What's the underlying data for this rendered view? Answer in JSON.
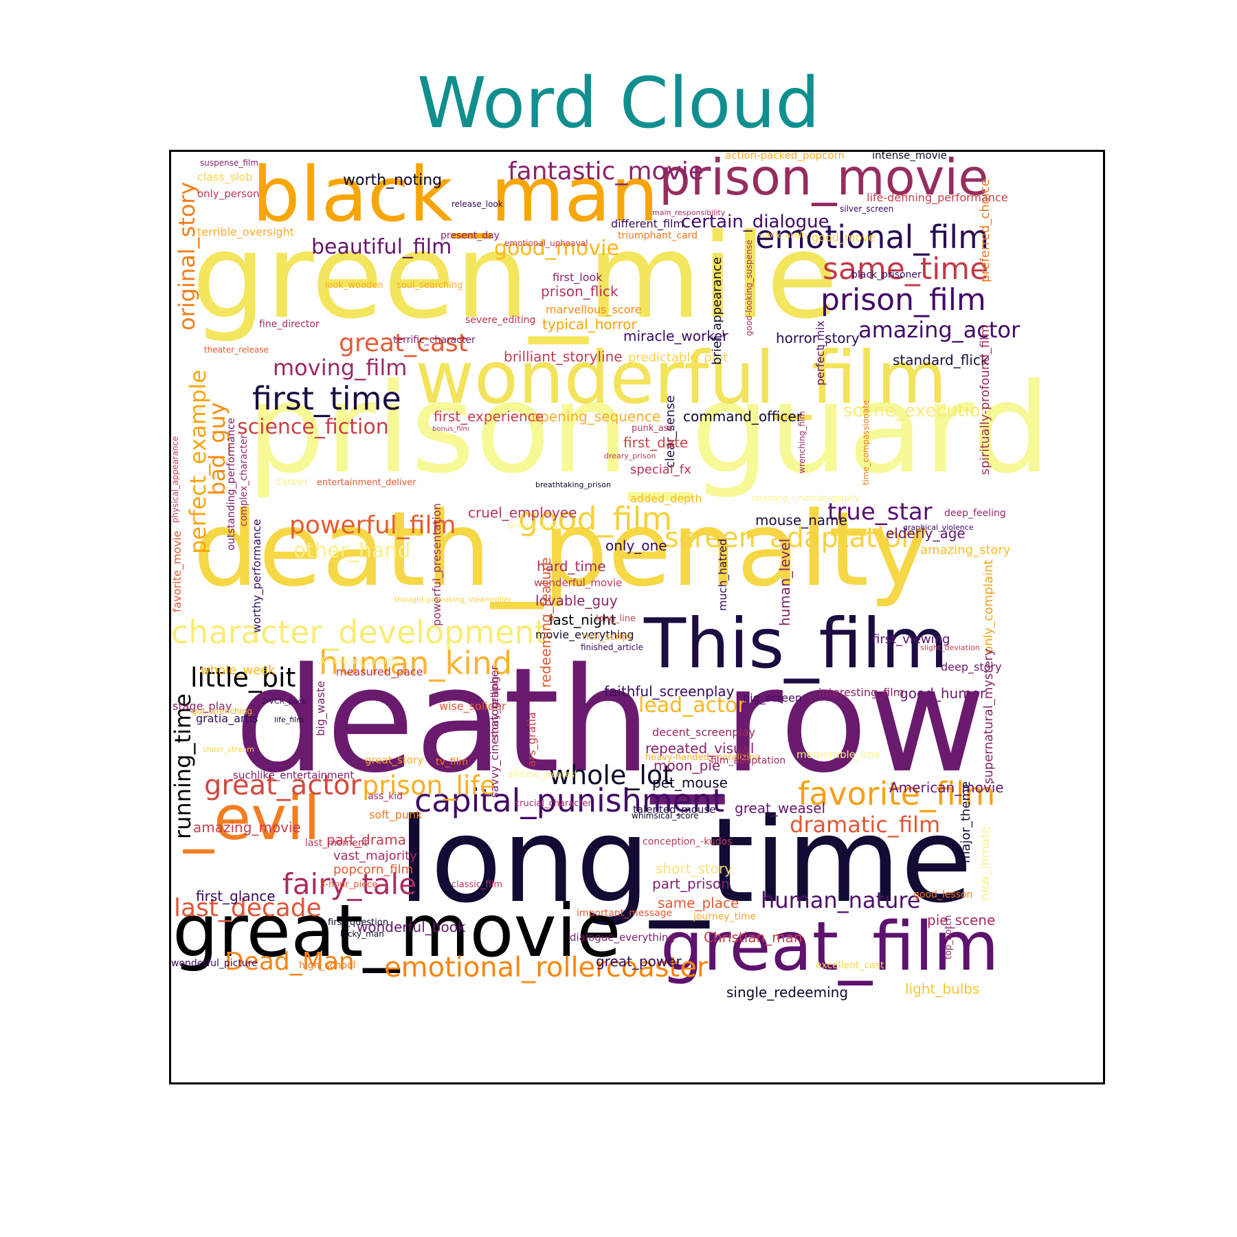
{
  "chart_data": {
    "type": "wordcloud",
    "title": "Word Cloud",
    "colormap": "inferno",
    "words": [
      {
        "text": "prison_guard",
        "color": "#f6f996"
      },
      {
        "text": "death_penalty",
        "color": "#f6d746"
      },
      {
        "text": "green_mile",
        "color": "#f3e55d"
      },
      {
        "text": "death_row",
        "color": "#6a1b6d"
      },
      {
        "text": "long_time",
        "color": "#140b34"
      },
      {
        "text": "wonderful_film",
        "color": "#f3e35a"
      },
      {
        "text": "black_man",
        "color": "#f8a507"
      },
      {
        "text": "prison_movie",
        "color": "#962c60"
      },
      {
        "text": "great_movie",
        "color": "#000004"
      },
      {
        "text": "great_film",
        "color": "#5d126e"
      },
      {
        "text": "This_film",
        "color": "#1b0c42"
      },
      {
        "text": "_evil",
        "color": "#f37d22"
      },
      {
        "text": "character_development",
        "color": "#f9ec74"
      },
      {
        "text": "capital_punishment",
        "color": "#410a67"
      },
      {
        "text": "emotional_film",
        "color": "#280b54"
      },
      {
        "text": "favorite_film",
        "color": "#f8a013"
      },
      {
        "text": "human_kind",
        "color": "#fbb32f"
      },
      {
        "text": "emotional_rollercoaster",
        "color": "#f8850f"
      },
      {
        "text": "prison_film",
        "color": "#420a68"
      },
      {
        "text": "same_time",
        "color": "#c03a4a"
      },
      {
        "text": "first_time",
        "color": "#1b0c41"
      },
      {
        "text": "fantastic_movie",
        "color": "#8a226a"
      },
      {
        "text": "good_film",
        "color": "#f5d13a"
      },
      {
        "text": "screen_adaptation",
        "color": "#f8d13f"
      },
      {
        "text": "whole_lot",
        "color": "#0d0829"
      },
      {
        "text": "great_actor",
        "color": "#d1493f"
      },
      {
        "text": "fairy_tale",
        "color": "#a72d5f"
      },
      {
        "text": "prison_life",
        "color": "#fbae22"
      },
      {
        "text": "last_decade",
        "color": "#e05536"
      },
      {
        "text": "human_nature",
        "color": "#4e0e6d"
      },
      {
        "text": "powerful_film",
        "color": "#e65c2d"
      },
      {
        "text": "great_cast",
        "color": "#e45a31"
      },
      {
        "text": "moving_film",
        "color": "#9b2964"
      },
      {
        "text": "little_bit",
        "color": "#000004"
      },
      {
        "text": "beautiful_film",
        "color": "#65156e"
      },
      {
        "text": "Dead_Man",
        "color": "#f78410"
      },
      {
        "text": "science_fiction",
        "color": "#c93e44"
      },
      {
        "text": "amazing_actor",
        "color": "#400a67"
      },
      {
        "text": "true_star",
        "color": "#56106e"
      },
      {
        "text": "dramatic_film",
        "color": "#e25734"
      },
      {
        "text": "original_story",
        "color": "#f57d15"
      },
      {
        "text": "perfect_example",
        "color": "#fba40a"
      },
      {
        "text": "bad_guy",
        "color": "#f98c0a"
      },
      {
        "text": "good_movie",
        "color": "#fbb61a"
      },
      {
        "text": "lead_actor",
        "color": "#fbb61a"
      },
      {
        "text": "other_hand",
        "color": "#faf08c"
      },
      {
        "text": "running_time",
        "color": "#000004"
      },
      {
        "text": "certain_dialogue",
        "color": "#3d0965"
      },
      {
        "text": "worth_noting",
        "color": "#0c0826"
      },
      {
        "text": "scene_execution",
        "color": "#f9ea7e"
      },
      {
        "text": "command_officer",
        "color": "#0d0829"
      },
      {
        "text": "opening_sequence",
        "color": "#fcaa28"
      },
      {
        "text": "first_experience",
        "color": "#c73e4c"
      },
      {
        "text": "brilliant_storyline",
        "color": "#c03a4e"
      },
      {
        "text": "typical_horror",
        "color": "#f9a108"
      },
      {
        "text": "marvellous_score",
        "color": "#f98a0b"
      },
      {
        "text": "prison_flick",
        "color": "#b5335a"
      },
      {
        "text": "first_look",
        "color": "#89226a"
      },
      {
        "text": "miracle_worker",
        "color": "#3b0964"
      },
      {
        "text": "horror_story",
        "color": "#2a0b56"
      },
      {
        "text": "standard_flick",
        "color": "#1b0c41"
      },
      {
        "text": "predictable_plot",
        "color": "#fbd24b"
      },
      {
        "text": "brief_appearance",
        "color": "#0d0829"
      },
      {
        "text": "perfect_mix",
        "color": "#5b116e"
      },
      {
        "text": "clear_sense",
        "color": "#1e0c45"
      },
      {
        "text": "first_date",
        "color": "#cd4347"
      },
      {
        "text": "special_fx",
        "color": "#b73659"
      },
      {
        "text": "added_depth",
        "color": "#f9b825"
      },
      {
        "text": "cruel_employee",
        "color": "#b5335a"
      },
      {
        "text": "only_one",
        "color": "#330a5f"
      },
      {
        "text": "hard_time",
        "color": "#a42c60"
      },
      {
        "text": "wonderful_movie",
        "color": "#b83556"
      },
      {
        "text": "lovable_guy",
        "color": "#8c2369"
      },
      {
        "text": "last_night",
        "color": "#000004"
      },
      {
        "text": "movie_everything",
        "color": "#100a2f"
      },
      {
        "text": "mouse_name",
        "color": "#1e0c45"
      },
      {
        "text": "elderly_age",
        "color": "#65156e"
      },
      {
        "text": "amazing_story",
        "color": "#fbbc21"
      },
      {
        "text": "deep_feeling",
        "color": "#9a2865"
      },
      {
        "text": "human_level",
        "color": "#7e1e6c"
      },
      {
        "text": "much_hatred",
        "color": "#2c0b58"
      },
      {
        "text": "first_viewing",
        "color": "#5b126e"
      },
      {
        "text": "only_complaint",
        "color": "#f6a21d"
      },
      {
        "text": "deep_story",
        "color": "#6b186e"
      },
      {
        "text": "faithful_screenplay",
        "color": "#350a60"
      },
      {
        "text": "big_screen",
        "color": "#400a67"
      },
      {
        "text": "interesting_film",
        "color": "#8d2369"
      },
      {
        "text": "good_humor",
        "color": "#6b186e"
      },
      {
        "text": "supernatural_mystery",
        "color": "#8c2369"
      },
      {
        "text": "decent_screenplay",
        "color": "#9a2865"
      },
      {
        "text": "repeated_visual",
        "color": "#8a226a"
      },
      {
        "text": "moon_pie",
        "color": "#8a226a"
      },
      {
        "text": "pet_mouse",
        "color": "#0c0826"
      },
      {
        "text": "American_movie",
        "color": "#65156e"
      },
      {
        "text": "major_theme",
        "color": "#120a32"
      },
      {
        "text": "great_weasel",
        "color": "#65156e"
      },
      {
        "text": "talented_mouse",
        "color": "#1b0c41"
      },
      {
        "text": "conception_-kudos",
        "color": "#bb3755"
      },
      {
        "text": "short_story",
        "color": "#f9e27b"
      },
      {
        "text": "part_prison",
        "color": "#7e1e6c"
      },
      {
        "text": "same_place",
        "color": "#e35933"
      },
      {
        "text": "journey_time",
        "color": "#fbaa28"
      },
      {
        "text": "pie_scene",
        "color": "#a52c60"
      },
      {
        "text": "Christian_man",
        "color": "#c73e4c"
      },
      {
        "text": "great_power",
        "color": "#2c0b58"
      },
      {
        "text": "light_bulbs",
        "color": "#f7c52d"
      },
      {
        "text": "single_redeeming",
        "color": "#0d0829"
      },
      {
        "text": "wonderful_book",
        "color": "#65156e"
      },
      {
        "text": "first_glance",
        "color": "#350a60"
      },
      {
        "text": "popcorn_film",
        "color": "#e35933"
      },
      {
        "text": "vast_majority",
        "color": "#a52c60"
      },
      {
        "text": "part_drama",
        "color": "#c73e4c"
      },
      {
        "text": "amazing_movie",
        "color": "#c73e4c"
      },
      {
        "text": "soft_punk",
        "color": "#f3771a"
      },
      {
        "text": "gratia_artis",
        "color": "#2c0b58"
      },
      {
        "text": "stage_play",
        "color": "#8a226a"
      },
      {
        "text": "whole_week",
        "color": "#fbb61a"
      },
      {
        "text": "measured_pace",
        "color": "#bb3755"
      },
      {
        "text": "wise_solider",
        "color": "#e35933"
      },
      {
        "text": "great_story",
        "color": "#fbaa28"
      },
      {
        "text": "tv_film",
        "color": "#f3771a"
      },
      {
        "text": "redeeming_feature",
        "color": "#e35933"
      },
      {
        "text": "powerful_presentation",
        "color": "#9a2865"
      },
      {
        "text": "worthy_performance",
        "color": "#350a60"
      },
      {
        "text": "outstanding_performance",
        "color": "#7e1e6c"
      },
      {
        "text": "complex_character",
        "color": "#9a2865"
      },
      {
        "text": "favorite_movie",
        "color": "#e35933"
      },
      {
        "text": "physical_appearance",
        "color": "#c73e4c"
      },
      {
        "text": "savvy_cinematographer",
        "color": "#7e1e6c"
      },
      {
        "text": "story_telling",
        "color": "#9a2865"
      },
      {
        "text": "ars_gratia",
        "color": "#c73e4c"
      },
      {
        "text": "big_waste",
        "color": "#7e1e6c"
      },
      {
        "text": "preferred_choice",
        "color": "#f3771a"
      },
      {
        "text": "spiritually-profound_film",
        "color": "#a52c60"
      },
      {
        "text": "new_inmate",
        "color": "#faf08c"
      },
      {
        "text": "top_notch",
        "color": "#8a226a"
      },
      {
        "text": "wrenching_film",
        "color": "#9a2865"
      },
      {
        "text": "time_compassionate",
        "color": "#f3771a"
      },
      {
        "text": "good-looking_suspense",
        "color": "#a52c60"
      },
      {
        "text": "life-defining_performance",
        "color": "#c73e4c"
      },
      {
        "text": "silver_screen",
        "color": "#350a60"
      },
      {
        "text": "action-packed_popcorn",
        "color": "#fbaa28"
      },
      {
        "text": "intense_movie",
        "color": "#0c0826"
      },
      {
        "text": "suspense_film",
        "color": "#8a226a"
      },
      {
        "text": "class_slob",
        "color": "#fbd24b"
      },
      {
        "text": "only_person",
        "color": "#bb3755"
      },
      {
        "text": "terrible_oversight",
        "color": "#fbaa28"
      },
      {
        "text": "present_day",
        "color": "#8a226a"
      },
      {
        "text": "release_look",
        "color": "#350a60"
      },
      {
        "text": "main_responsibility",
        "color": "#a52c60"
      },
      {
        "text": "different_film",
        "color": "#350a60"
      },
      {
        "text": "triumphant_card",
        "color": "#f3771a"
      },
      {
        "text": "emotional_upheaval",
        "color": "#c73e4c"
      },
      {
        "text": "subtle_ability",
        "color": "#fbd24b"
      },
      {
        "text": "good_move",
        "color": "#fbd24b"
      },
      {
        "text": "black_prisoner",
        "color": "#350a60"
      },
      {
        "text": "look_wooden",
        "color": "#fbaa28"
      },
      {
        "text": "soul_searching",
        "color": "#fbaa28"
      },
      {
        "text": "fine_director",
        "color": "#a52c60"
      },
      {
        "text": "severe_editing",
        "color": "#bb3755"
      },
      {
        "text": "terrific_character",
        "color": "#7e1e6c"
      },
      {
        "text": "theater_release",
        "color": "#e35933"
      },
      {
        "text": "bonus_film",
        "color": "#bb3755"
      },
      {
        "text": "punk_ass",
        "color": "#bb3755"
      },
      {
        "text": "dreary_prison",
        "color": "#bb3755"
      },
      {
        "text": "career",
        "color": "#faf08c"
      },
      {
        "text": "entertainment_deliver",
        "color": "#e35933"
      },
      {
        "text": "breathtaking_prison",
        "color": "#0c0826"
      },
      {
        "text": "stunning_cinematography",
        "color": "#faf08c"
      },
      {
        "text": "brilliant_story",
        "color": "#faf08c"
      },
      {
        "text": "graphical_violence",
        "color": "#350a60"
      },
      {
        "text": "thought-provoking_steamroller",
        "color": "#fbd24b"
      },
      {
        "text": "long_line",
        "color": "#c73e4c"
      },
      {
        "text": "rich_script",
        "color": "#fbaa28"
      },
      {
        "text": "finished_article",
        "color": "#350a60"
      },
      {
        "text": "slight_deviation",
        "color": "#c73e4c"
      },
      {
        "text": "American_cinema",
        "color": "#faf08c"
      },
      {
        "text": "2-VCR_pack",
        "color": "#350a60"
      },
      {
        "text": "gut_wrenching",
        "color": "#fbaa28"
      },
      {
        "text": "life_film",
        "color": "#0c0826"
      },
      {
        "text": "sheer_stream",
        "color": "#fbd24b"
      },
      {
        "text": "suchlike_entertainment",
        "color": "#7e1e6c"
      },
      {
        "text": "ass_kid",
        "color": "#a52c60"
      },
      {
        "text": "last_moment",
        "color": "#bb3755"
      },
      {
        "text": "3-hour_piece",
        "color": "#e35933"
      },
      {
        "text": "classic_film",
        "color": "#bb3755"
      },
      {
        "text": "first_question",
        "color": "#0c0826"
      },
      {
        "text": "lucky_man",
        "color": "#0c0826"
      },
      {
        "text": "wonderful_picture",
        "color": "#350a60"
      },
      {
        "text": "high_school",
        "color": "#f3771a"
      },
      {
        "text": "important_message",
        "color": "#e35933"
      },
      {
        "text": "dialogue_everything",
        "color": "#7e1e6c"
      },
      {
        "text": "excellent_cast",
        "color": "#fbd24b"
      },
      {
        "text": "good_lesson",
        "color": "#f3771a"
      },
      {
        "text": "heavy-handed_moralizing",
        "color": "#fbaa28"
      },
      {
        "text": "film_adaptation",
        "color": "#a52c60"
      },
      {
        "text": "memorable_one",
        "color": "#faf08c"
      },
      {
        "text": "all-time_greatest",
        "color": "#faf08c"
      },
      {
        "text": "crucial_character",
        "color": "#a52c60"
      },
      {
        "text": "whimsical_score",
        "color": "#0c0826"
      }
    ]
  }
}
